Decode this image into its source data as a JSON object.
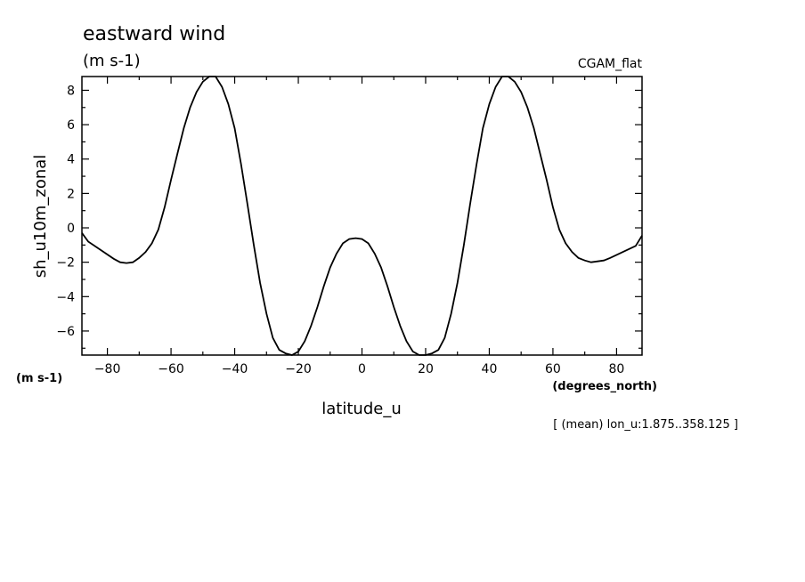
{
  "chart_data": {
    "type": "line",
    "title": "eastward wind",
    "title_units": "(m s-1)",
    "dataset": "CGAM_flat",
    "xlabel": "latitude_u",
    "x_units": "(degrees_north)",
    "ylabel": "sh_u10m_zonal",
    "y_units": "(m s-1)",
    "note": "[ (mean) lon_u:1.875..358.125 ]",
    "xlim": [
      -88,
      88
    ],
    "ylim": [
      -7.4,
      8.8
    ],
    "x_ticks": [
      -80,
      -60,
      -40,
      -20,
      0,
      20,
      40,
      60,
      80
    ],
    "y_ticks": [
      -6,
      -4,
      -2,
      0,
      2,
      4,
      6,
      8
    ],
    "grid": false,
    "legend": "none",
    "line_color": "#000000",
    "series": [
      {
        "x": [
          -88,
          -86,
          -82,
          -78,
          -76,
          -74,
          -72,
          -70,
          -68,
          -66,
          -64,
          -62,
          -60,
          -58,
          -56,
          -54,
          -52,
          -50,
          -48,
          -46,
          -44,
          -42,
          -40,
          -38,
          -36,
          -34,
          -32,
          -30,
          -28,
          -26,
          -24,
          -22,
          -20,
          -18,
          -16,
          -14,
          -12,
          -10,
          -8,
          -6,
          -4,
          -2,
          0,
          2,
          4,
          6,
          8,
          10,
          12,
          14,
          16,
          18,
          20,
          22,
          24,
          26,
          28,
          30,
          32,
          34,
          36,
          38,
          40,
          42,
          44,
          46,
          48,
          50,
          52,
          54,
          56,
          58,
          60,
          62,
          64,
          66,
          68,
          70,
          72,
          74,
          76,
          78,
          82,
          86,
          88
        ],
        "y": [
          -0.3,
          -0.8,
          -1.3,
          -1.8,
          -2.0,
          -2.05,
          -2.0,
          -1.75,
          -1.4,
          -0.9,
          -0.1,
          1.2,
          2.8,
          4.3,
          5.8,
          7.0,
          7.9,
          8.5,
          8.8,
          8.8,
          8.2,
          7.2,
          5.8,
          3.7,
          1.4,
          -1.0,
          -3.2,
          -5.0,
          -6.4,
          -7.1,
          -7.3,
          -7.4,
          -7.2,
          -6.6,
          -5.7,
          -4.6,
          -3.4,
          -2.3,
          -1.5,
          -0.9,
          -0.65,
          -0.6,
          -0.65,
          -0.9,
          -1.5,
          -2.3,
          -3.4,
          -4.6,
          -5.7,
          -6.6,
          -7.2,
          -7.4,
          -7.4,
          -7.3,
          -7.1,
          -6.4,
          -5.0,
          -3.2,
          -1.0,
          1.4,
          3.7,
          5.8,
          7.2,
          8.2,
          8.8,
          8.8,
          8.5,
          7.9,
          7.0,
          5.8,
          4.3,
          2.8,
          1.2,
          -0.1,
          -0.9,
          -1.4,
          -1.75,
          -1.9,
          -2.0,
          -1.95,
          -1.9,
          -1.75,
          -1.4,
          -1.05,
          -0.45
        ]
      }
    ]
  }
}
